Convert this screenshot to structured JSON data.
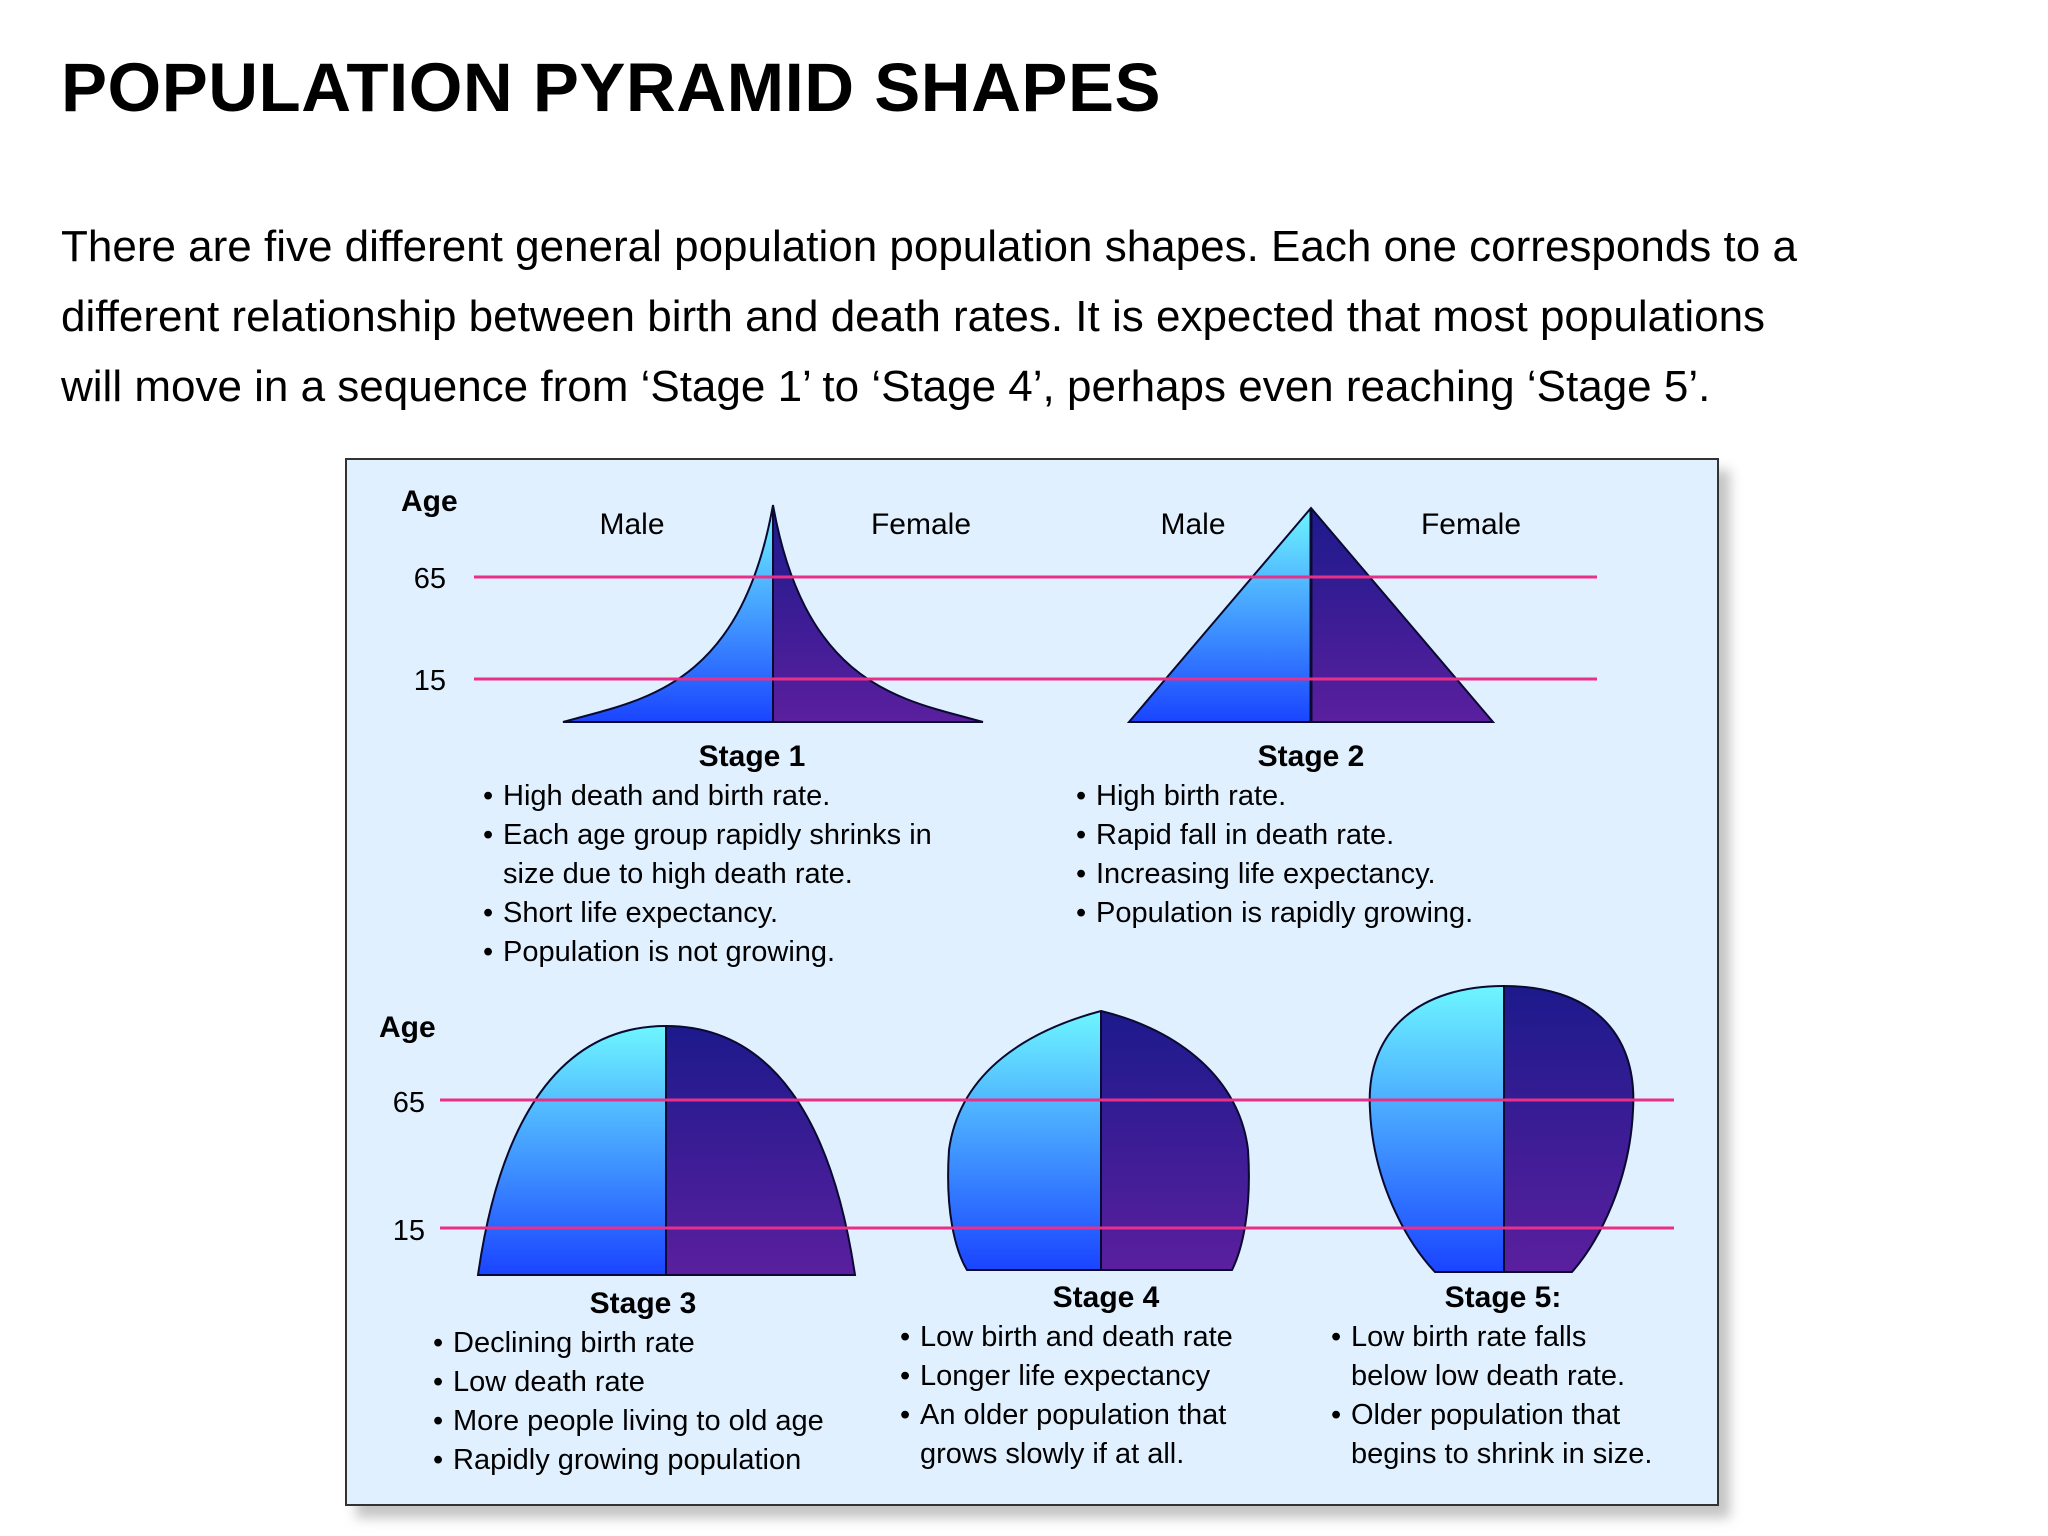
{
  "title": "POPULATION PYRAMID SHAPES",
  "intro_lines": [
    "There are five different general population population shapes. Each one corresponds to a",
    "different relationship between birth and death rates. It is expected that most populations",
    "will move in a sequence from ‘Stage 1’ to ‘Stage 4’, perhaps even reaching ‘Stage 5’."
  ],
  "diagram": {
    "axis_label": "Age",
    "age_marks": [
      "65",
      "15"
    ],
    "male_label": "Male",
    "female_label": "Female",
    "colors": {
      "male_top": "#6ef6ff",
      "male_bottom": "#1a44ff",
      "female_top": "#1c1a8c",
      "female_bottom": "#5a1f9e",
      "threshold_line": "#e8308a",
      "outline": "#0a0a30"
    },
    "stages": [
      {
        "title": "Stage 1",
        "bullets": [
          [
            "High death and birth rate."
          ],
          [
            "Each age group rapidly shrinks in",
            "size due to high death rate."
          ],
          [
            "Short life expectancy."
          ],
          [
            "Population is not growing."
          ]
        ]
      },
      {
        "title": "Stage 2",
        "bullets": [
          [
            "High birth rate."
          ],
          [
            "Rapid fall in death rate."
          ],
          [
            "Increasing life expectancy."
          ],
          [
            "Population is rapidly growing."
          ]
        ]
      },
      {
        "title": "Stage 3",
        "bullets": [
          [
            "Declining birth rate"
          ],
          [
            "Low death rate"
          ],
          [
            "More people living to old age"
          ],
          [
            "Rapidly growing population"
          ]
        ]
      },
      {
        "title": "Stage 4",
        "bullets": [
          [
            "Low birth and death rate"
          ],
          [
            "Longer life expectancy"
          ],
          [
            "An older population that",
            "grows slowly if at all."
          ]
        ]
      },
      {
        "title": "Stage 5:",
        "bullets": [
          [
            "Low birth rate falls",
            "below low death rate."
          ],
          [
            "Older population that",
            "begins to shrink in size."
          ]
        ]
      }
    ]
  }
}
